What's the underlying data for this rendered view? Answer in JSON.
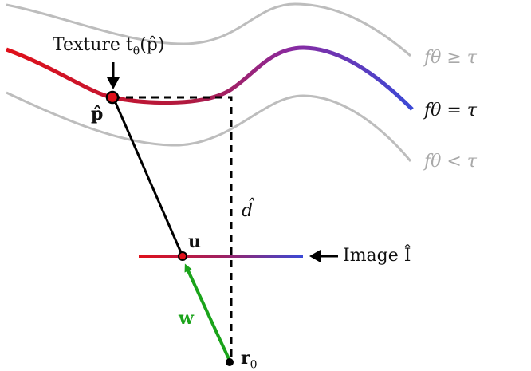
{
  "labels": {
    "texture": "Texture t",
    "texture_sub": "θ",
    "texture_arg": "(p̂)",
    "p_hat": "p̂",
    "u": "u",
    "d_hat": "d̂",
    "w": "w",
    "r0": "r",
    "r0_sub": "0",
    "image": "Image Î",
    "f_ge": "fθ ≥ τ",
    "f_eq": "fθ = τ",
    "f_lt": "fθ < τ"
  },
  "colors": {
    "gray_curve": "#bdbdbd",
    "red": "#e0101a",
    "purple": "#8a2aa0",
    "blue": "#3a49d6",
    "green": "#1aa31a",
    "black": "#000000"
  }
}
